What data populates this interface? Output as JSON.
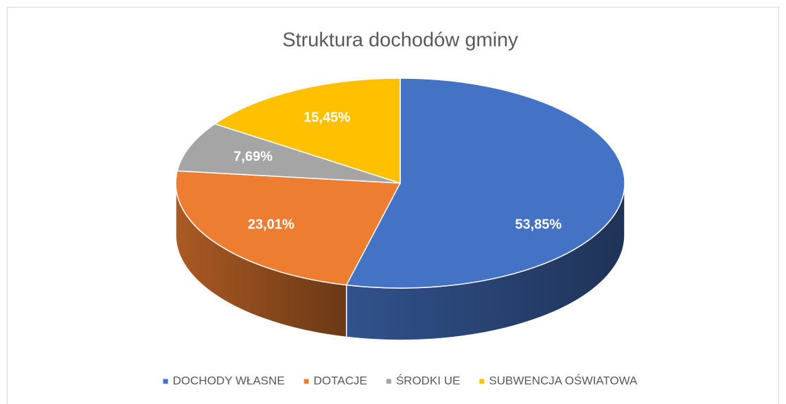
{
  "chart_data": {
    "type": "pie3d",
    "title": "Struktura dochodów gminy",
    "categories": [
      "DOCHODY WŁASNE",
      "DOTACJE",
      "ŚRODKI UE",
      "SUBWENCJA OŚWIATOWA"
    ],
    "values": [
      53.85,
      23.01,
      7.69,
      15.45
    ],
    "value_labels": [
      "53,85%",
      "23,01%",
      "7,69%",
      "15,45%"
    ],
    "colors": [
      "#4472c4",
      "#ed7d31",
      "#a5a5a5",
      "#ffc000"
    ],
    "legend": "bottom"
  }
}
